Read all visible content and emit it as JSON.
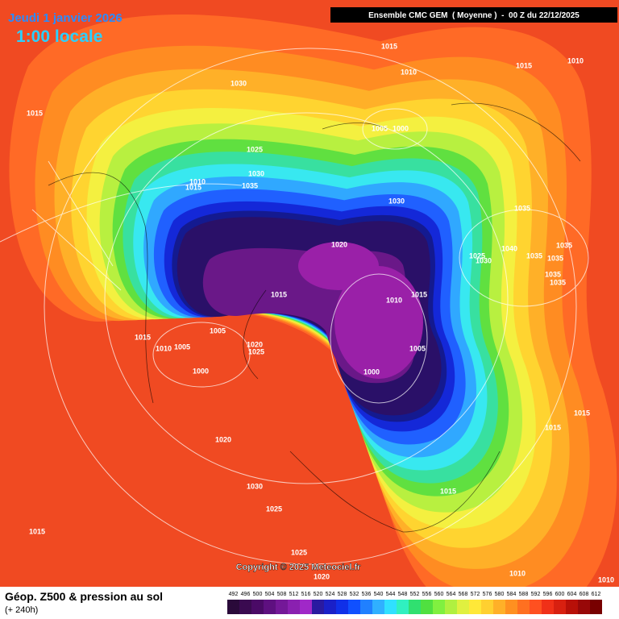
{
  "header": {
    "date": "Jeudi 1 janvier 2026",
    "time": "1:00 locale",
    "run": "Ensemble CMC GEM  ( Moyenne )  -  00 Z du 22/12/2025"
  },
  "map": {
    "copyright": "Copyright © 2025 Meteociel.fr",
    "isobars": [
      "1015",
      "1010",
      "1015",
      "1010",
      "1030",
      "1015",
      "1005",
      "1000",
      "1025",
      "1030",
      "1010",
      "1015",
      "1035",
      "1030",
      "1035",
      "1020",
      "1040",
      "1035",
      "1025",
      "1030",
      "1035",
      "1035",
      "1035",
      "1035",
      "1015",
      "1015",
      "1010",
      "1015",
      "1005",
      "1020",
      "1025",
      "1010",
      "1005",
      "1005",
      "1000",
      "1000",
      "1015",
      "1015",
      "1020",
      "1030",
      "1015",
      "1025",
      "1015",
      "1025",
      "1020",
      "1010",
      "1010"
    ]
  },
  "footer": {
    "title": "Géop. Z500 & pression au sol",
    "lead": "(+ 240h)"
  },
  "legend": {
    "ticks": [
      492,
      496,
      500,
      504,
      508,
      512,
      516,
      520,
      524,
      528,
      532,
      536,
      540,
      544,
      548,
      552,
      556,
      560,
      564,
      568,
      572,
      576,
      580,
      584,
      588,
      592,
      596,
      600,
      604,
      608,
      612
    ],
    "colors": [
      "#2a0a3a",
      "#3a0a50",
      "#4a0a66",
      "#5e1080",
      "#741898",
      "#8a20b0",
      "#a028c8",
      "#2a1aa0",
      "#1a20c8",
      "#1030e8",
      "#1050ff",
      "#2080ff",
      "#30b0ff",
      "#30e0ff",
      "#30f0c0",
      "#30e070",
      "#50e040",
      "#80f040",
      "#b0f040",
      "#e0f040",
      "#ffe838",
      "#ffd030",
      "#ffb028",
      "#ff9020",
      "#ff7020",
      "#ff5020",
      "#f03018",
      "#d82010",
      "#b81008",
      "#980808",
      "#780000"
    ]
  }
}
